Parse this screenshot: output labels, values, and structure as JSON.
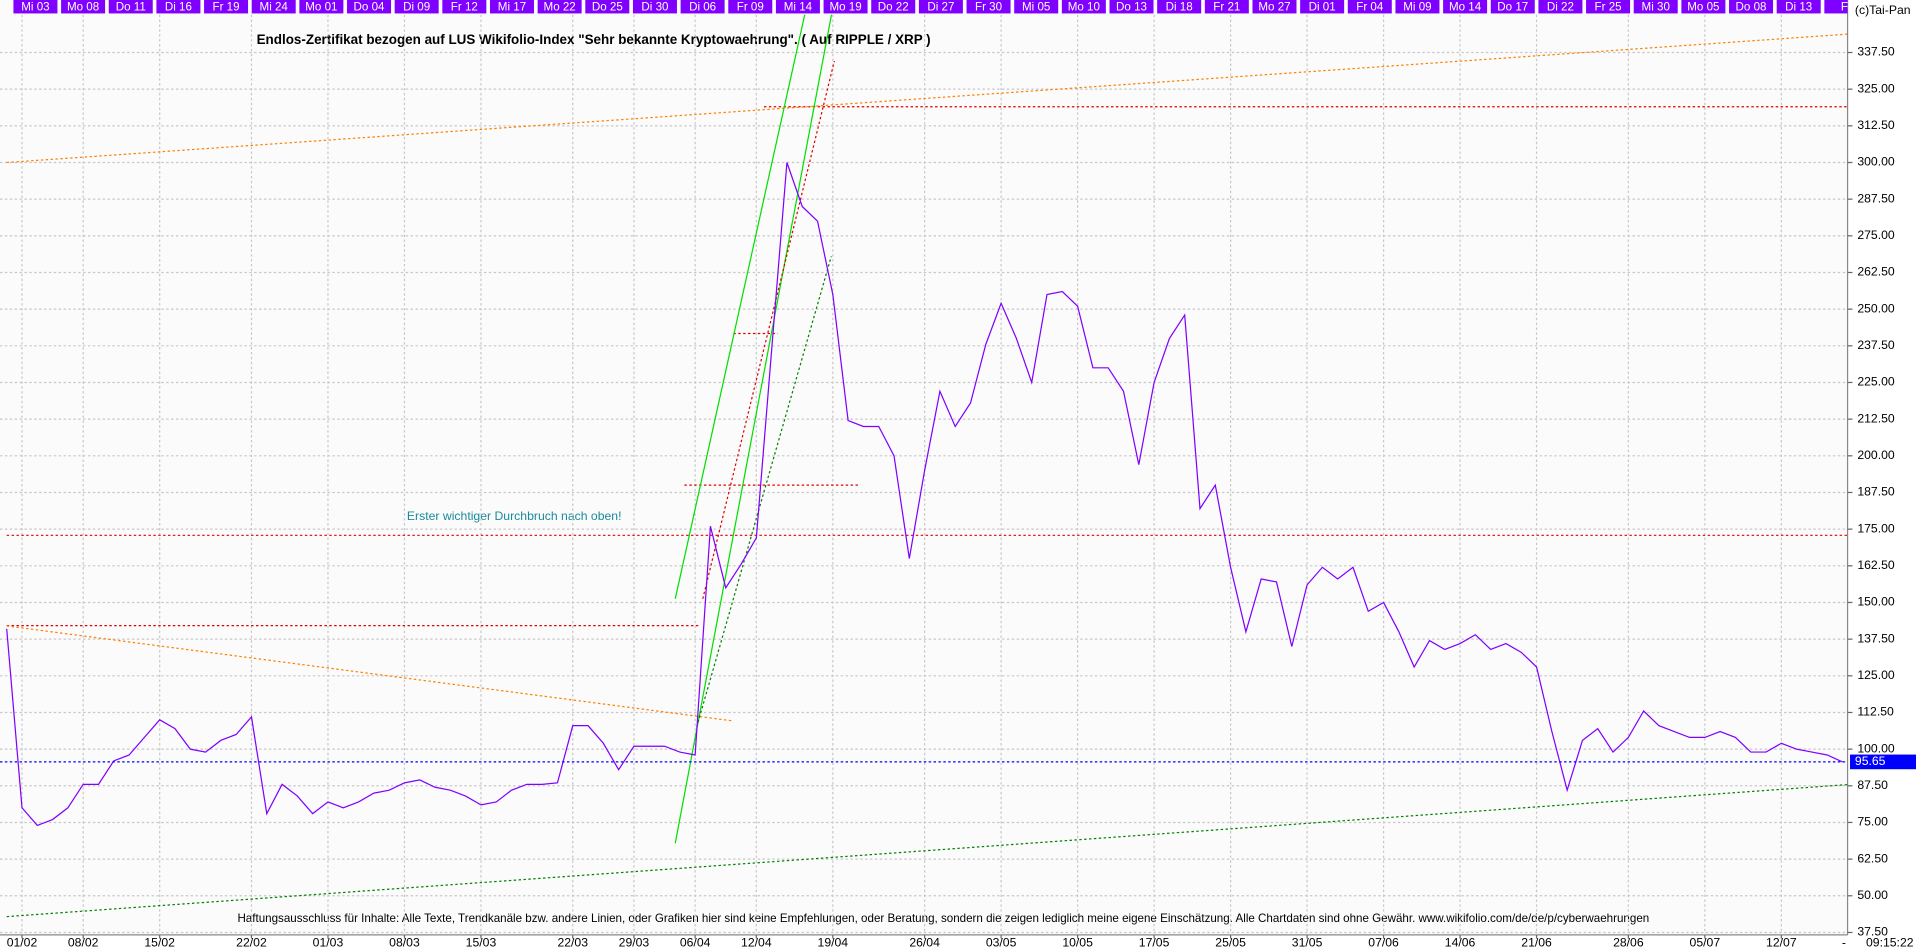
{
  "chart_data": {
    "type": "line",
    "title": "Endlos-Zertifikat bezogen auf LUS Wikifolio-Index \"Sehr bekannte Kryptowaehrung\". ( Auf RIPPLE / XRP )",
    "annotation": "Erster wichtiger Durchbruch nach oben!",
    "footer": "Haftungsausschluss für Inhalte: Alle Texte, Trendkanäle bzw. andere Linien, oder Grafiken hier sind keine Empfehlungen, oder Beratung, sondern die zeigen lediglich meine eigene Einschätzung. Alle Chartdaten sind ohne Gewähr.  www.wikifolio.com/de/de/p/cyberwaehrungen",
    "copyright": "(c)Tai-Pan",
    "time": "09:15:22",
    "time_marker": "-",
    "top_labels": [
      "Mi 03",
      "Mo 08",
      "Do 11",
      "Di 16",
      "Fr 19",
      "Mi 24",
      "Mo 01",
      "Do 04",
      "Di 09",
      "Fr 12",
      "Mi 17",
      "Mo 22",
      "Do 25",
      "Di 30",
      "Di 06",
      "Fr 09",
      "Mi 14",
      "Mo 19",
      "Do 22",
      "Di 27",
      "Fr 30",
      "Mi 05",
      "Mo 10",
      "Do 13",
      "Di 18",
      "Fr 21",
      "Mo 27",
      "Di 01",
      "Fr 04",
      "Mi 09",
      "Mo 14",
      "Do 17",
      "Di 22",
      "Fr 25",
      "Mi 30",
      "Mo 05",
      "Do 08",
      "Di 13",
      "Fr"
    ],
    "categories": [
      null,
      "01/02",
      null,
      null,
      null,
      "08/02",
      null,
      null,
      null,
      null,
      "15/02",
      null,
      null,
      null,
      null,
      null,
      "22/02",
      null,
      null,
      null,
      null,
      "01/03",
      null,
      null,
      null,
      null,
      "08/03",
      null,
      null,
      null,
      null,
      "15/03",
      null,
      null,
      null,
      null,
      null,
      "22/03",
      null,
      null,
      null,
      "29/03",
      null,
      null,
      null,
      "06/04",
      null,
      null,
      null,
      "12/04",
      null,
      null,
      null,
      null,
      "19/04",
      null,
      null,
      null,
      null,
      null,
      "26/04",
      null,
      null,
      null,
      null,
      "03/05",
      null,
      null,
      null,
      null,
      "10/05",
      null,
      null,
      null,
      null,
      "17/05",
      null,
      null,
      null,
      null,
      "25/05",
      null,
      null,
      null,
      null,
      "31/05",
      null,
      null,
      null,
      null,
      "07/06",
      null,
      null,
      null,
      null,
      "14/06",
      null,
      null,
      null,
      null,
      "21/06",
      null,
      null,
      null,
      null,
      null,
      "28/06",
      null,
      null,
      null,
      null,
      "05/07",
      null,
      null,
      null,
      null,
      "12/07",
      null,
      null,
      null,
      null
    ],
    "series": [
      {
        "name": "XRP",
        "color": "#7f00ff",
        "values": [
          141,
          80,
          74,
          76,
          80,
          88,
          88,
          96,
          98,
          104,
          110,
          107,
          100,
          99,
          103,
          105,
          111,
          78,
          88,
          84,
          78,
          82,
          80,
          82,
          85,
          86,
          88.5,
          89.5,
          87,
          86,
          84,
          81,
          82,
          86,
          88,
          88,
          88.5,
          108,
          108,
          102,
          93,
          101,
          101,
          101,
          99,
          98,
          176,
          155,
          163,
          172,
          236,
          300,
          285,
          280,
          255,
          212,
          210,
          210,
          200,
          165,
          195,
          222,
          210,
          218,
          238,
          252,
          240,
          225,
          255,
          256,
          251,
          230,
          230,
          222,
          197,
          225,
          240,
          248,
          182,
          190,
          162,
          140,
          158,
          157,
          135,
          156,
          162,
          158,
          162,
          147,
          150,
          140,
          128,
          137,
          134,
          136,
          139,
          134,
          136,
          133,
          128,
          106,
          86,
          103,
          107,
          99,
          104,
          113,
          108,
          106,
          104,
          104,
          106,
          104,
          99,
          99,
          102,
          100,
          99,
          98,
          95.65
        ]
      }
    ],
    "ylim": [
      36.67,
      350.4
    ],
    "yticks": [
      {
        "value": 37.5,
        "label": "37.50"
      },
      {
        "value": 50,
        "label": "50.00"
      },
      {
        "value": 62.5,
        "label": "62.50"
      },
      {
        "value": 75,
        "label": "75.00"
      },
      {
        "value": 87.5,
        "label": "87.50"
      },
      {
        "value": 100,
        "label": "100.00"
      },
      {
        "value": 112.5,
        "label": "112.50"
      },
      {
        "value": 125,
        "label": "125.00"
      },
      {
        "value": 137.5,
        "label": "137.50"
      },
      {
        "value": 150,
        "label": "150.00"
      },
      {
        "value": 162.5,
        "label": "162.50"
      },
      {
        "value": 175,
        "label": "175.00"
      },
      {
        "value": 187.5,
        "label": "187.50"
      },
      {
        "value": 200,
        "label": "200.00"
      },
      {
        "value": 212.5,
        "label": "212.50"
      },
      {
        "value": 225,
        "label": "225.00"
      },
      {
        "value": 237.5,
        "label": "237.50"
      },
      {
        "value": 250,
        "label": "250.00"
      },
      {
        "value": 262.5,
        "label": "262.50"
      },
      {
        "value": 275,
        "label": "275.00"
      },
      {
        "value": 287.5,
        "label": "287.50"
      },
      {
        "value": 300,
        "label": "300.00"
      },
      {
        "value": 312.5,
        "label": "312.50"
      },
      {
        "value": 325,
        "label": "325.00"
      },
      {
        "value": 337.5,
        "label": "337.50"
      }
    ],
    "grid": true,
    "hlines": [
      {
        "value": 319,
        "from": 49.5,
        "to": 120.3,
        "color": "#e00000"
      },
      {
        "value": 172.9,
        "from": 0,
        "to": 120.3,
        "color": "#e00000"
      },
      {
        "value": 142.1,
        "from": 0,
        "to": 45.3,
        "color": "#e00000"
      },
      {
        "value": 190,
        "from": 44.3,
        "to": 55.7,
        "color": "#e00000"
      },
      {
        "value": 241.7,
        "from": 47.5,
        "to": 50.4,
        "color": "#e00000"
      }
    ],
    "trendlines": [
      {
        "color": "#ff8000",
        "dashed": true,
        "points": [
          [
            0,
            300
          ],
          [
            120.3,
            343.75
          ]
        ]
      },
      {
        "color": "#ff8000",
        "dashed": true,
        "points": [
          [
            0,
            142
          ],
          [
            47.5,
            109.6
          ]
        ]
      },
      {
        "color": "#008000",
        "dashed": true,
        "points": [
          [
            0,
            42.9
          ],
          [
            120.3,
            87.9
          ]
        ]
      },
      {
        "color": "#00e000",
        "dashed": false,
        "points": [
          [
            43.7,
            67.9
          ],
          [
            54.1,
            355.6
          ]
        ]
      },
      {
        "color": "#00e000",
        "dashed": false,
        "points": [
          [
            43.7,
            151.25
          ],
          [
            52.3,
            353.6
          ]
        ]
      },
      {
        "color": "#008000",
        "dashed": true,
        "points": [
          [
            45.1,
            107.5
          ],
          [
            53.9,
            268
          ]
        ]
      },
      {
        "color": "#e00000",
        "dashed": true,
        "points": [
          [
            45.5,
            151.25
          ],
          [
            54.1,
            334.6
          ]
        ]
      }
    ]
  }
}
